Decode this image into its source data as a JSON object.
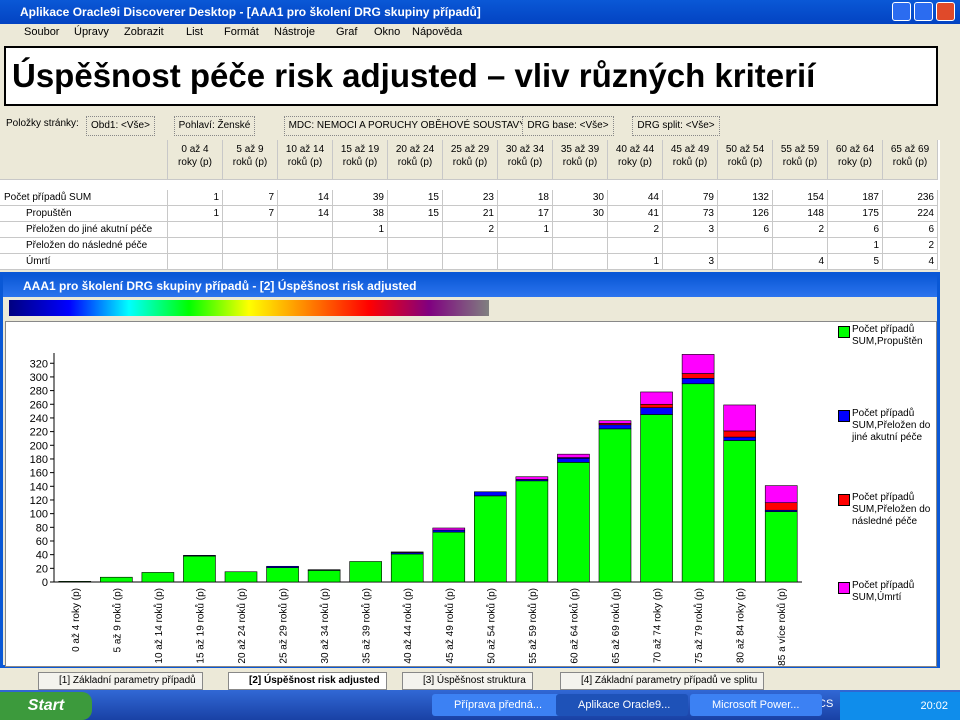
{
  "window_title": "Aplikace Oracle9i Discoverer Desktop - [AAA1 pro školení DRG skupiny případů]",
  "menu": [
    "Soubor",
    "Úpravy",
    "Zobrazit",
    "List",
    "Formát",
    "Nástroje",
    "Graf",
    "Okno",
    "Nápověda"
  ],
  "slide_title": "Úspěšnost péče risk adjusted – vliv různých kriterií",
  "page_items": {
    "label": "Položky stránky:",
    "items": [
      "Obd1: <Vše>",
      "Pohlaví: Ženské",
      "MDC: NEMOCI A PORUCHY OBĚHOVÉ SOUSTAVY",
      "DRG base: <Vše>",
      "DRG split: <Vše>"
    ]
  },
  "table": {
    "columns": [
      [
        "0 až 4",
        "roky (p)"
      ],
      [
        "5 až 9",
        "roků (p)"
      ],
      [
        "10 až 14",
        "roků (p)"
      ],
      [
        "15 až 19",
        "roků (p)"
      ],
      [
        "20 až 24",
        "roků (p)"
      ],
      [
        "25 až 29",
        "roků (p)"
      ],
      [
        "30 až 34",
        "roků (p)"
      ],
      [
        "35 až 39",
        "roků (p)"
      ],
      [
        "40 až 44",
        "roky (p)"
      ],
      [
        "45 až 49",
        "roků (p)"
      ],
      [
        "50 až 54",
        "roků (p)"
      ],
      [
        "55 až 59",
        "roků (p)"
      ],
      [
        "60 až 64",
        "roky (p)"
      ],
      [
        "65 až 69",
        "roků (p)"
      ]
    ],
    "rows": [
      {
        "label": "Počet případů SUM",
        "cells": [
          1,
          7,
          14,
          39,
          15,
          23,
          18,
          30,
          44,
          79,
          132,
          154,
          187,
          236
        ]
      },
      {
        "label": "Propuštěn",
        "cells": [
          1,
          7,
          14,
          38,
          15,
          21,
          17,
          30,
          41,
          73,
          126,
          148,
          175,
          224
        ]
      },
      {
        "label": "Přeložen do jiné akutní péče",
        "cells": [
          null,
          null,
          null,
          1,
          null,
          2,
          1,
          null,
          2,
          3,
          6,
          2,
          6,
          6
        ]
      },
      {
        "label": "Přeložen do následné péče",
        "cells": [
          null,
          null,
          null,
          null,
          null,
          null,
          null,
          null,
          null,
          null,
          null,
          null,
          1,
          2
        ]
      },
      {
        "label": "Úmrtí",
        "cells": [
          null,
          null,
          null,
          null,
          null,
          null,
          null,
          null,
          1,
          3,
          null,
          4,
          5,
          4
        ]
      }
    ]
  },
  "chart_window_title": "AAA1 pro školení DRG skupiny případů - [2] Úspěšnost risk adjusted",
  "chart_data": {
    "type": "stacked-bar",
    "categories": [
      "0 až 4 roky (p)",
      "5 až 9 roků (p)",
      "10 až 14 roků (p)",
      "15 až 19 roků (p)",
      "20 až 24 roků (p)",
      "25 až 29 roků (p)",
      "30 až 34 roků (p)",
      "35 až 39 roků (p)",
      "40 až 44 roků (p)",
      "45 až 49 roků (p)",
      "50 až 54 roků (p)",
      "55 až 59 roků (p)",
      "60 až 64 roků (p)",
      "65 až 69 roků (p)",
      "70 až 74 roky (p)",
      "75 až 79 roků (p)",
      "80 až 84 roky (p)",
      "85 a více roků (p)"
    ],
    "series": [
      {
        "name": "Počet případů SUM,Propuštěn",
        "color": "#00ff00",
        "values": [
          1,
          7,
          14,
          38,
          15,
          21,
          17,
          30,
          41,
          73,
          126,
          148,
          175,
          224,
          245,
          290,
          207,
          103
        ]
      },
      {
        "name": "Počet případů SUM,Přeložen do jiné akutní péče",
        "color": "#0000ff",
        "values": [
          0,
          0,
          0,
          1,
          0,
          2,
          1,
          0,
          2,
          3,
          6,
          2,
          6,
          6,
          10,
          8,
          5,
          2
        ]
      },
      {
        "name": "Počet případů SUM,Přeložen do následné péče",
        "color": "#ff0000",
        "values": [
          0,
          0,
          0,
          0,
          0,
          0,
          0,
          0,
          0,
          0,
          0,
          0,
          1,
          2,
          5,
          7,
          9,
          11
        ]
      },
      {
        "name": "Počet případů SUM,Úmrtí",
        "color": "#ff00ff",
        "values": [
          0,
          0,
          0,
          0,
          0,
          0,
          0,
          0,
          1,
          3,
          0,
          4,
          5,
          4,
          18,
          28,
          38,
          25
        ]
      }
    ],
    "ylim": [
      0,
      335
    ],
    "yticks": [
      0,
      20,
      40,
      60,
      80,
      100,
      120,
      140,
      160,
      180,
      200,
      220,
      240,
      260,
      280,
      300,
      320
    ]
  },
  "tabs": [
    "[1] Základní parametry případů",
    "[2] Úspěšnost risk adjusted",
    "[3] Úspěšnost struktura",
    "[4] Základní parametry případů ve splitu"
  ],
  "taskbar": {
    "start": "Start",
    "buttons": [
      "Příprava předná...",
      "Aplikace Oracle9...",
      "Microsoft Power..."
    ],
    "language": "CS",
    "clock": "20:02"
  }
}
